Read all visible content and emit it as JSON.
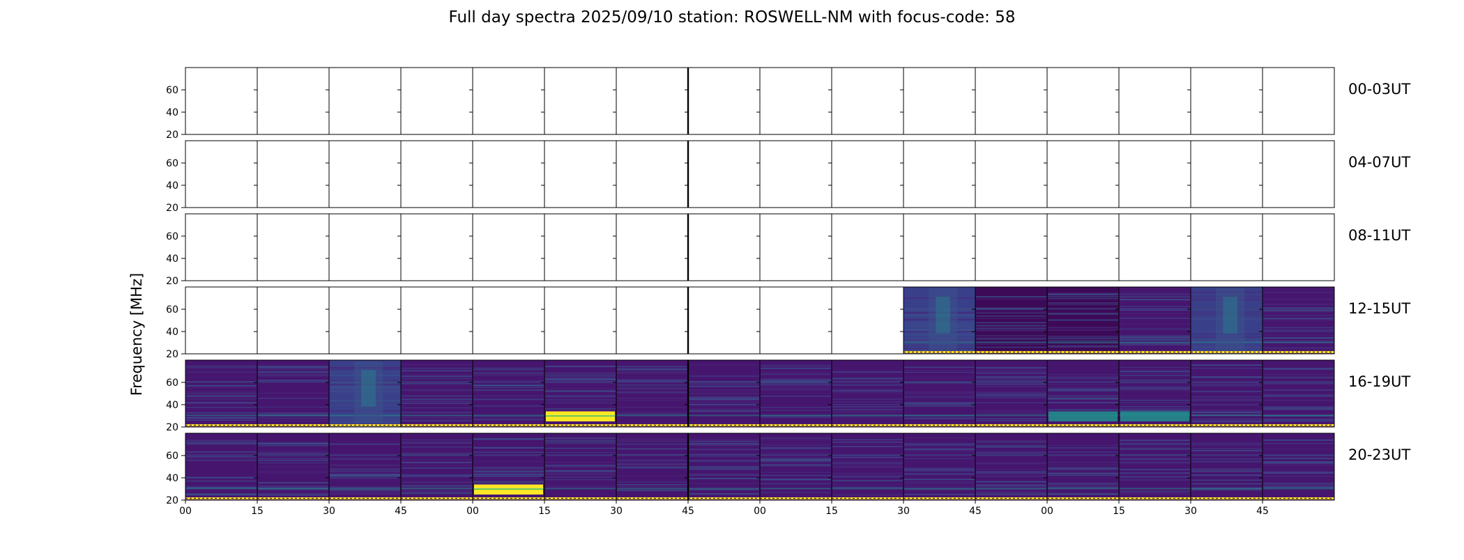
{
  "chart_data": {
    "type": "heatmap",
    "title": "Full day spectra 2025/09/10 station: ROSWELL-NM with focus-code: 58",
    "ylabel": "Frequency [MHz]",
    "xlabel": "",
    "ylim": [
      20,
      80
    ],
    "y_ticks": [
      20,
      40,
      60
    ],
    "x_tick_labels": [
      "00",
      "15",
      "30",
      "45",
      "00",
      "15",
      "30",
      "45",
      "00",
      "15",
      "30",
      "45",
      "00",
      "15",
      "30",
      "45"
    ],
    "panels_per_row": 16,
    "panel_duration_minutes": 15,
    "colormap": [
      "#440154",
      "#3b528b",
      "#21918c",
      "#5ec962",
      "#fde725"
    ],
    "rows": [
      {
        "label": "00-03UT",
        "panels": [
          "empty",
          "empty",
          "empty",
          "empty",
          "empty",
          "empty",
          "empty",
          "empty",
          "empty",
          "empty",
          "empty",
          "empty",
          "empty",
          "empty",
          "empty",
          "empty"
        ]
      },
      {
        "label": "04-07UT",
        "panels": [
          "empty",
          "empty",
          "empty",
          "empty",
          "empty",
          "empty",
          "empty",
          "empty",
          "empty",
          "empty",
          "empty",
          "empty",
          "empty",
          "empty",
          "empty",
          "empty"
        ]
      },
      {
        "label": "08-11UT",
        "panels": [
          "empty",
          "empty",
          "empty",
          "empty",
          "empty",
          "empty",
          "empty",
          "empty",
          "empty",
          "empty",
          "empty",
          "empty",
          "empty",
          "empty",
          "empty",
          "empty"
        ]
      },
      {
        "label": "12-15UT",
        "panels": [
          "empty",
          "empty",
          "empty",
          "empty",
          "empty",
          "empty",
          "empty",
          "empty",
          "empty",
          "empty",
          "bright",
          "dark",
          "dark",
          "normal",
          "bright",
          "normal"
        ]
      },
      {
        "label": "16-19UT",
        "panels": [
          "normal",
          "normal",
          "bright",
          "normal",
          "normal",
          "burst",
          "normal",
          "normal",
          "normal",
          "normal",
          "normal",
          "normal",
          "burst-weak",
          "burst-weak",
          "normal",
          "normal"
        ]
      },
      {
        "label": "20-23UT",
        "panels": [
          "normal",
          "normal",
          "normal",
          "normal",
          "burst",
          "normal",
          "normal",
          "normal",
          "normal",
          "normal",
          "normal",
          "normal",
          "normal",
          "normal",
          "normal",
          "normal"
        ]
      }
    ]
  }
}
